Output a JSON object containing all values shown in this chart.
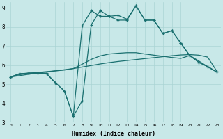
{
  "xlabel": "Humidex (Indice chaleur)",
  "bg_color": "#c8e8e8",
  "grid_color": "#aad4d4",
  "line_color": "#1a7070",
  "xlim": [
    -0.5,
    23.5
  ],
  "ylim": [
    3,
    9.3
  ],
  "xticks": [
    0,
    1,
    2,
    3,
    4,
    5,
    6,
    7,
    8,
    9,
    10,
    11,
    12,
    13,
    14,
    15,
    16,
    17,
    18,
    19,
    20,
    21,
    22,
    23
  ],
  "yticks": [
    3,
    4,
    5,
    6,
    7,
    8,
    9
  ],
  "line1_x": [
    0,
    1,
    2,
    3,
    4,
    5,
    6,
    7,
    8,
    9,
    10,
    11,
    12,
    13,
    14,
    15,
    16,
    17,
    18,
    19,
    20,
    21,
    22,
    23
  ],
  "line1_y": [
    5.38,
    5.45,
    5.52,
    5.58,
    5.64,
    5.7,
    5.76,
    5.82,
    5.9,
    5.98,
    6.06,
    6.13,
    6.19,
    6.24,
    6.29,
    6.34,
    6.39,
    6.44,
    6.49,
    6.53,
    6.55,
    6.52,
    6.42,
    5.7
  ],
  "line2_x": [
    0,
    1,
    2,
    3,
    4,
    5,
    6,
    7,
    8,
    9,
    10,
    11,
    12,
    13,
    14,
    15,
    16,
    17,
    18,
    19,
    20,
    21,
    22,
    23
  ],
  "line2_y": [
    5.38,
    5.5,
    5.58,
    5.62,
    5.66,
    5.7,
    5.74,
    5.82,
    6.05,
    6.3,
    6.48,
    6.58,
    6.62,
    6.65,
    6.65,
    6.58,
    6.52,
    6.46,
    6.4,
    6.35,
    6.5,
    6.22,
    5.92,
    5.65
  ],
  "line3_x": [
    0,
    1,
    2,
    3,
    4,
    5,
    6,
    7,
    8,
    9,
    10,
    11,
    12,
    13,
    14,
    15,
    16,
    17,
    18,
    19,
    20,
    21,
    22,
    23
  ],
  "line3_y": [
    5.38,
    5.55,
    5.58,
    5.58,
    5.58,
    5.08,
    4.65,
    3.32,
    4.15,
    8.1,
    8.85,
    8.55,
    8.6,
    8.4,
    9.1,
    8.35,
    8.35,
    7.65,
    7.8,
    7.15,
    6.5,
    6.15,
    5.92,
    5.65
  ],
  "line4_x": [
    0,
    1,
    2,
    3,
    4,
    5,
    6,
    7,
    8,
    9,
    10,
    11,
    12,
    13,
    14,
    15,
    16,
    17,
    18,
    19,
    20,
    21,
    22,
    23
  ],
  "line4_y": [
    5.38,
    5.55,
    5.58,
    5.58,
    5.55,
    5.08,
    4.65,
    3.32,
    8.05,
    8.85,
    8.55,
    8.55,
    8.35,
    8.35,
    9.1,
    8.35,
    8.35,
    7.65,
    7.8,
    7.15,
    6.5,
    6.15,
    5.92,
    5.65
  ]
}
